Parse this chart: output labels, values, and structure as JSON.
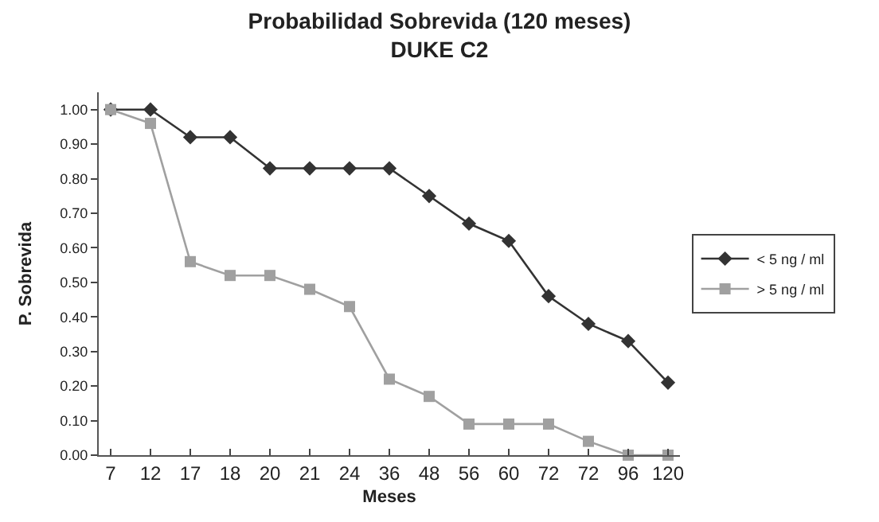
{
  "chart_data": {
    "type": "line",
    "title": "Probabilidad Sobrevida (120 meses)",
    "subtitle": "DUKE C2",
    "xlabel": "Meses",
    "ylabel": "P. Sobrevida",
    "categories": [
      "7",
      "12",
      "17",
      "18",
      "20",
      "21",
      "24",
      "36",
      "48",
      "56",
      "60",
      "72",
      "72",
      "96",
      "120"
    ],
    "series": [
      {
        "name": "< 5 ng / ml",
        "color": "#333333",
        "marker": "diamond",
        "values": [
          1.0,
          1.0,
          0.92,
          0.92,
          0.83,
          0.83,
          0.83,
          0.83,
          0.75,
          0.67,
          0.62,
          0.46,
          0.38,
          0.33,
          0.21
        ]
      },
      {
        "name": "> 5 ng / ml",
        "color": "#a0a0a0",
        "marker": "square",
        "values": [
          1.0,
          0.96,
          0.56,
          0.52,
          0.52,
          0.48,
          0.43,
          0.22,
          0.17,
          0.09,
          0.09,
          0.09,
          0.04,
          0.0,
          0.0
        ]
      }
    ],
    "ylim": [
      0,
      1.05
    ],
    "yticks": [
      {
        "value": 0,
        "label": "0.00"
      },
      {
        "value": 0.1,
        "label": "0.10"
      },
      {
        "value": 0.2,
        "label": "0.20"
      },
      {
        "value": 0.3,
        "label": "0.30"
      },
      {
        "value": 0.4,
        "label": "0.40"
      },
      {
        "value": 0.5,
        "label": "0.50"
      },
      {
        "value": 0.6,
        "label": "0.60"
      },
      {
        "value": 0.7,
        "label": "0.70"
      },
      {
        "value": 0.8,
        "label": "0.80"
      },
      {
        "value": 0.9,
        "label": "0.90"
      },
      {
        "value": 1.0,
        "label": "1.00"
      }
    ],
    "legend": "right",
    "line_style": "solid"
  }
}
